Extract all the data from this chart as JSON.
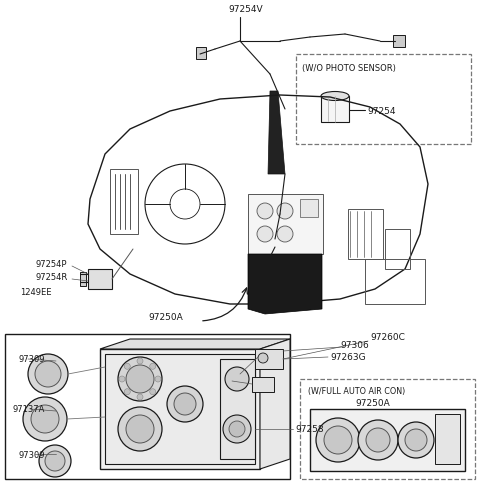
{
  "bg_color": "#ffffff",
  "lc": "#1a1a1a",
  "fig_width": 4.8,
  "fig_height": 4.85,
  "dpi": 100,
  "labels": {
    "97254V": [
      0.445,
      0.978
    ],
    "W_O_PHOTO": "(W/O PHOTO SENSOR)",
    "97254_label": "97254",
    "97254P": "97254P",
    "97254R": "97254R",
    "1249EE": "1249EE",
    "97250A_arrow": "97250A",
    "97306": "97306",
    "97260C": "97260C",
    "97263G": "97263G",
    "97309_top": "97309",
    "97137A": "97137A",
    "97309_bot": "97309",
    "97258": "97258",
    "W_FULL": "(W/FULL AUTO AIR CON)",
    "97250A_box": "97250A"
  }
}
